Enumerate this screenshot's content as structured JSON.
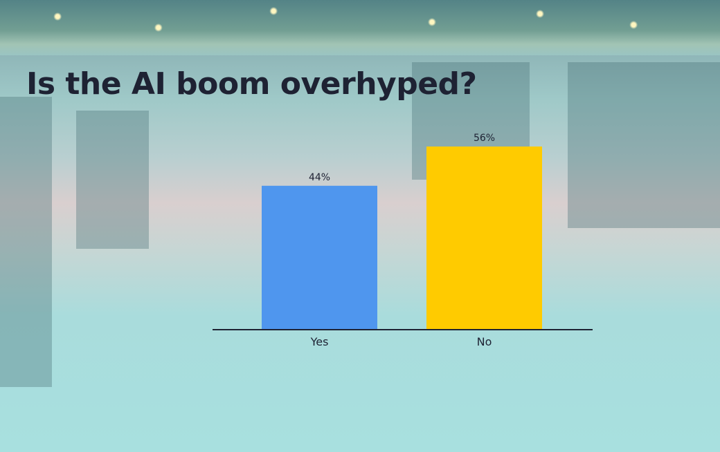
{
  "title": "Is the AI boom overhyped?",
  "chart_data": {
    "type": "bar",
    "title": "Is the AI boom overhyped?",
    "categories": [
      "Yes",
      "No"
    ],
    "values": [
      44,
      56
    ],
    "value_labels": [
      "44%",
      "56%"
    ],
    "colors": [
      "#4f96ee",
      "#ffcb00"
    ],
    "unit": "%",
    "grid": false
  }
}
